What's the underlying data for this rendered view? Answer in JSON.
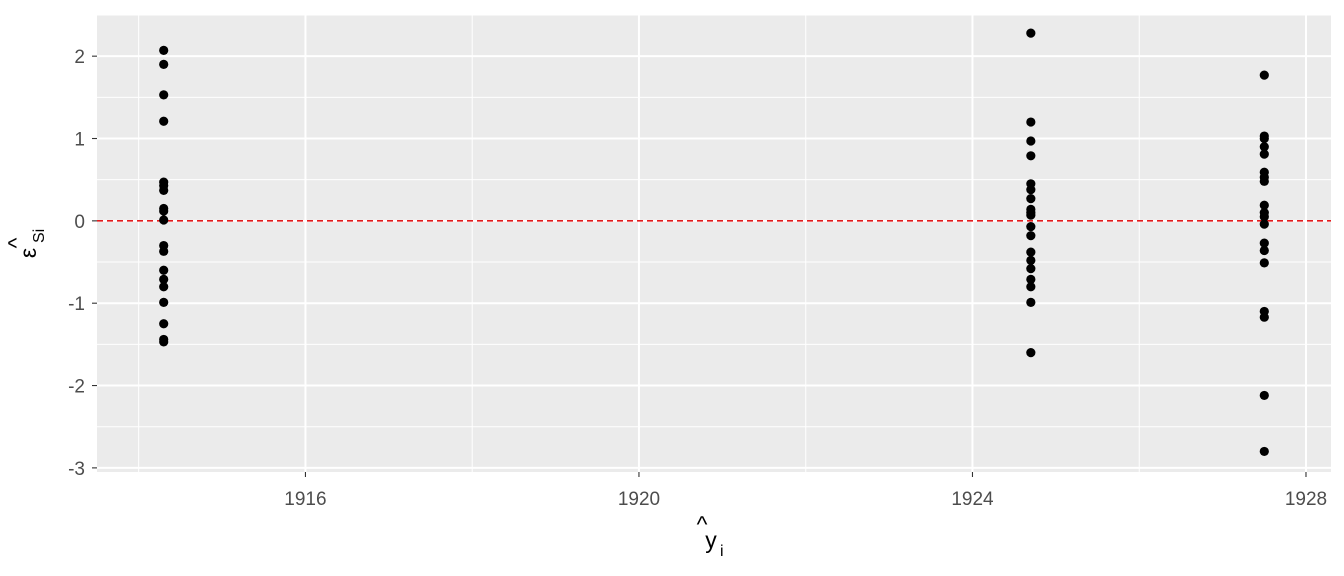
{
  "chart_data": {
    "type": "scatter",
    "title": "",
    "xlabel": {
      "base": "y",
      "hat": "^",
      "sub": "i"
    },
    "ylabel": {
      "base": "ε",
      "hat": "^",
      "sub": "Si"
    },
    "xlim": [
      1913.5,
      1928.3
    ],
    "ylim": [
      -3.05,
      2.5
    ],
    "x_ticks": [
      1916,
      1920,
      1924,
      1928
    ],
    "x_tick_labels": [
      "1916",
      "1920",
      "1924",
      "1928"
    ],
    "y_ticks": [
      -3,
      -2,
      -1,
      0,
      1,
      2
    ],
    "y_tick_labels": [
      "-3",
      "-2",
      "-1",
      "0",
      "1",
      "2"
    ],
    "grid": true,
    "background": "#EBEBEB",
    "point_color": "#000000",
    "reference_line": {
      "y": 0,
      "color": "#E41A1C",
      "style": "dashed"
    },
    "points": [
      {
        "x": 1914.3,
        "y": 2.07
      },
      {
        "x": 1914.3,
        "y": 1.9
      },
      {
        "x": 1914.3,
        "y": 1.53
      },
      {
        "x": 1914.3,
        "y": 1.21
      },
      {
        "x": 1914.3,
        "y": 0.47
      },
      {
        "x": 1914.3,
        "y": 0.43
      },
      {
        "x": 1914.3,
        "y": 0.37
      },
      {
        "x": 1914.3,
        "y": 0.15
      },
      {
        "x": 1914.3,
        "y": 0.12
      },
      {
        "x": 1914.3,
        "y": 0.01
      },
      {
        "x": 1914.3,
        "y": -0.3
      },
      {
        "x": 1914.3,
        "y": -0.37
      },
      {
        "x": 1914.3,
        "y": -0.6
      },
      {
        "x": 1914.3,
        "y": -0.71
      },
      {
        "x": 1914.3,
        "y": -0.8
      },
      {
        "x": 1914.3,
        "y": -0.99
      },
      {
        "x": 1914.3,
        "y": -1.25
      },
      {
        "x": 1914.3,
        "y": -1.44
      },
      {
        "x": 1914.3,
        "y": -1.47
      },
      {
        "x": 1924.7,
        "y": 2.28
      },
      {
        "x": 1924.7,
        "y": 1.2
      },
      {
        "x": 1924.7,
        "y": 0.97
      },
      {
        "x": 1924.7,
        "y": 0.79
      },
      {
        "x": 1924.7,
        "y": 0.45
      },
      {
        "x": 1924.7,
        "y": 0.38
      },
      {
        "x": 1924.7,
        "y": 0.27
      },
      {
        "x": 1924.7,
        "y": 0.14
      },
      {
        "x": 1924.7,
        "y": 0.1
      },
      {
        "x": 1924.7,
        "y": 0.07
      },
      {
        "x": 1924.7,
        "y": -0.07
      },
      {
        "x": 1924.7,
        "y": -0.18
      },
      {
        "x": 1924.7,
        "y": -0.38
      },
      {
        "x": 1924.7,
        "y": -0.48
      },
      {
        "x": 1924.7,
        "y": -0.58
      },
      {
        "x": 1924.7,
        "y": -0.71
      },
      {
        "x": 1924.7,
        "y": -0.8
      },
      {
        "x": 1924.7,
        "y": -0.99
      },
      {
        "x": 1924.7,
        "y": -1.6
      },
      {
        "x": 1927.5,
        "y": 1.77
      },
      {
        "x": 1927.5,
        "y": 1.03
      },
      {
        "x": 1927.5,
        "y": 1.0
      },
      {
        "x": 1927.5,
        "y": 0.9
      },
      {
        "x": 1927.5,
        "y": 0.81
      },
      {
        "x": 1927.5,
        "y": 0.59
      },
      {
        "x": 1927.5,
        "y": 0.53
      },
      {
        "x": 1927.5,
        "y": 0.48
      },
      {
        "x": 1927.5,
        "y": 0.19
      },
      {
        "x": 1927.5,
        "y": 0.1
      },
      {
        "x": 1927.5,
        "y": 0.05
      },
      {
        "x": 1927.5,
        "y": -0.04
      },
      {
        "x": 1927.5,
        "y": -0.27
      },
      {
        "x": 1927.5,
        "y": -0.36
      },
      {
        "x": 1927.5,
        "y": -0.51
      },
      {
        "x": 1927.5,
        "y": -1.1
      },
      {
        "x": 1927.5,
        "y": -1.17
      },
      {
        "x": 1927.5,
        "y": -2.12
      },
      {
        "x": 1927.5,
        "y": -2.8
      }
    ]
  }
}
